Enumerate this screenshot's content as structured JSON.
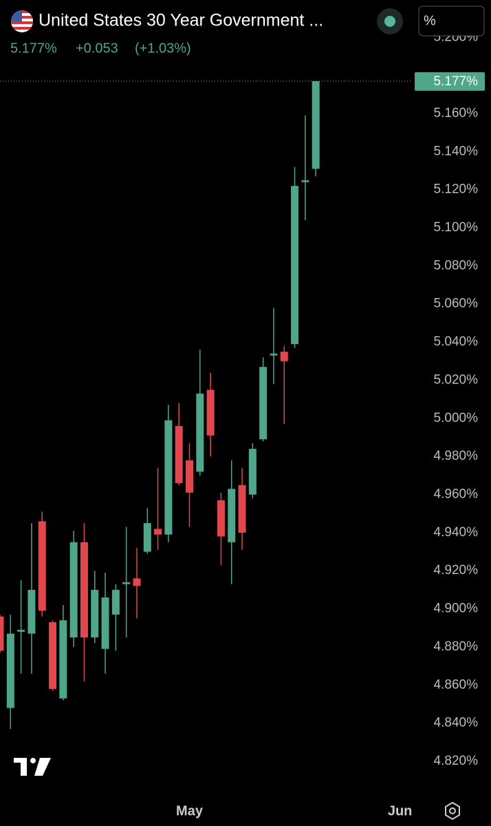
{
  "chart_data": {
    "type": "candlestick",
    "title": "United States 30 Year Government ...",
    "price_label": "5.177%",
    "change": "+0.053",
    "change_percent": "(+1.03%)",
    "unit_button": "%",
    "up_color": "#4fa68b",
    "down_color": "#e2474d",
    "categories": [
      null,
      null,
      null,
      null,
      null,
      null,
      null,
      null,
      null,
      null,
      null,
      null,
      null,
      null,
      null,
      null,
      null,
      null,
      null,
      null,
      null,
      null,
      null,
      null,
      null,
      null,
      null,
      null,
      null,
      null,
      null
    ],
    "open": [
      4.896,
      4.848,
      4.888,
      4.887,
      4.946,
      4.893,
      4.853,
      4.885,
      4.935,
      4.885,
      4.879,
      4.897,
      4.913,
      4.916,
      4.93,
      4.942,
      4.939,
      4.996,
      4.978,
      4.972,
      5.015,
      4.957,
      4.935,
      4.965,
      4.96,
      4.989,
      5.033,
      5.035,
      5.039,
      5.124,
      5.131
    ],
    "high": [
      4.897,
      4.897,
      4.915,
      4.945,
      4.951,
      4.894,
      4.902,
      4.941,
      4.945,
      4.92,
      4.919,
      4.913,
      4.943,
      4.932,
      4.953,
      4.974,
      5.007,
      5.008,
      4.987,
      5.036,
      5.024,
      4.961,
      4.978,
      4.974,
      4.987,
      5.032,
      5.058,
      5.038,
      5.132,
      5.159,
      5.177
    ],
    "low": [
      4.877,
      4.837,
      4.866,
      4.866,
      4.896,
      4.857,
      4.852,
      4.88,
      4.862,
      4.882,
      4.866,
      4.878,
      4.885,
      4.895,
      4.929,
      4.931,
      4.935,
      4.965,
      4.943,
      4.97,
      4.98,
      4.923,
      4.913,
      4.931,
      4.958,
      4.988,
      5.018,
      4.997,
      5.037,
      5.104,
      5.127
    ],
    "close": [
      4.878,
      4.887,
      4.889,
      4.91,
      4.899,
      4.858,
      4.894,
      4.935,
      4.885,
      4.91,
      4.906,
      4.91,
      4.914,
      4.912,
      4.945,
      4.939,
      4.999,
      4.966,
      4.961,
      5.013,
      4.991,
      4.938,
      4.963,
      4.94,
      4.984,
      5.027,
      5.034,
      5.03,
      5.122,
      5.125,
      5.177
    ],
    "xlim": [
      0,
      39.2
    ],
    "xticks": [
      {
        "value": 18,
        "label": "May"
      },
      {
        "value": 38,
        "label": "Jun"
      }
    ],
    "ylim": [
      4.8041,
      5.2196
    ],
    "yticks": [
      {
        "value": 5.2,
        "label": "5.200%"
      },
      {
        "value": 5.16,
        "label": "5.160%"
      },
      {
        "value": 5.14,
        "label": "5.140%"
      },
      {
        "value": 5.12,
        "label": "5.120%"
      },
      {
        "value": 5.1,
        "label": "5.100%"
      },
      {
        "value": 5.08,
        "label": "5.080%"
      },
      {
        "value": 5.06,
        "label": "5.060%"
      },
      {
        "value": 5.04,
        "label": "5.040%"
      },
      {
        "value": 5.02,
        "label": "5.020%"
      },
      {
        "value": 5.0,
        "label": "5.000%"
      },
      {
        "value": 4.98,
        "label": "4.980%"
      },
      {
        "value": 4.96,
        "label": "4.960%"
      },
      {
        "value": 4.94,
        "label": "4.940%"
      },
      {
        "value": 4.92,
        "label": "4.920%"
      },
      {
        "value": 4.9,
        "label": "4.900%"
      },
      {
        "value": 4.88,
        "label": "4.880%"
      },
      {
        "value": 4.86,
        "label": "4.860%"
      },
      {
        "value": 4.84,
        "label": "4.840%"
      },
      {
        "value": 4.82,
        "label": "4.820%"
      }
    ]
  }
}
